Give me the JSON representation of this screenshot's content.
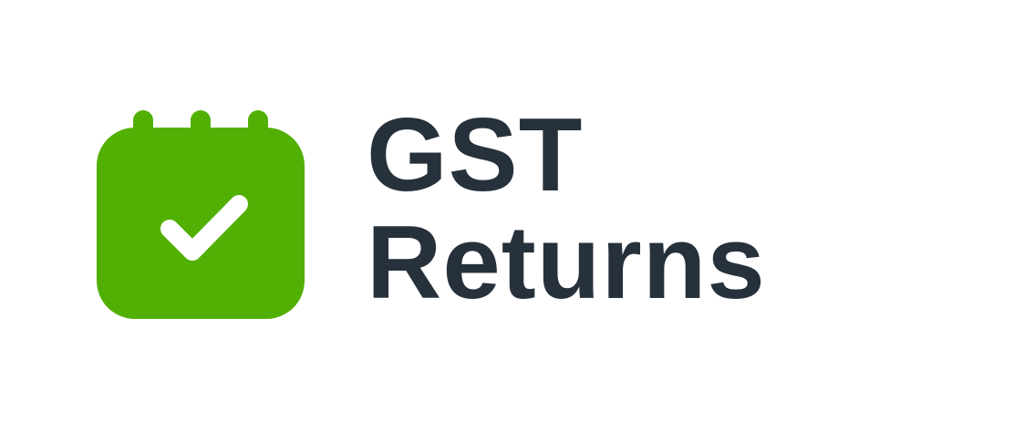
{
  "logo": {
    "icon": "calendar-check-icon",
    "icon_color": "#52b005",
    "check_color": "#ffffff",
    "text_color": "#26313c",
    "title_line1": "GST",
    "title_line2": "Returns"
  }
}
